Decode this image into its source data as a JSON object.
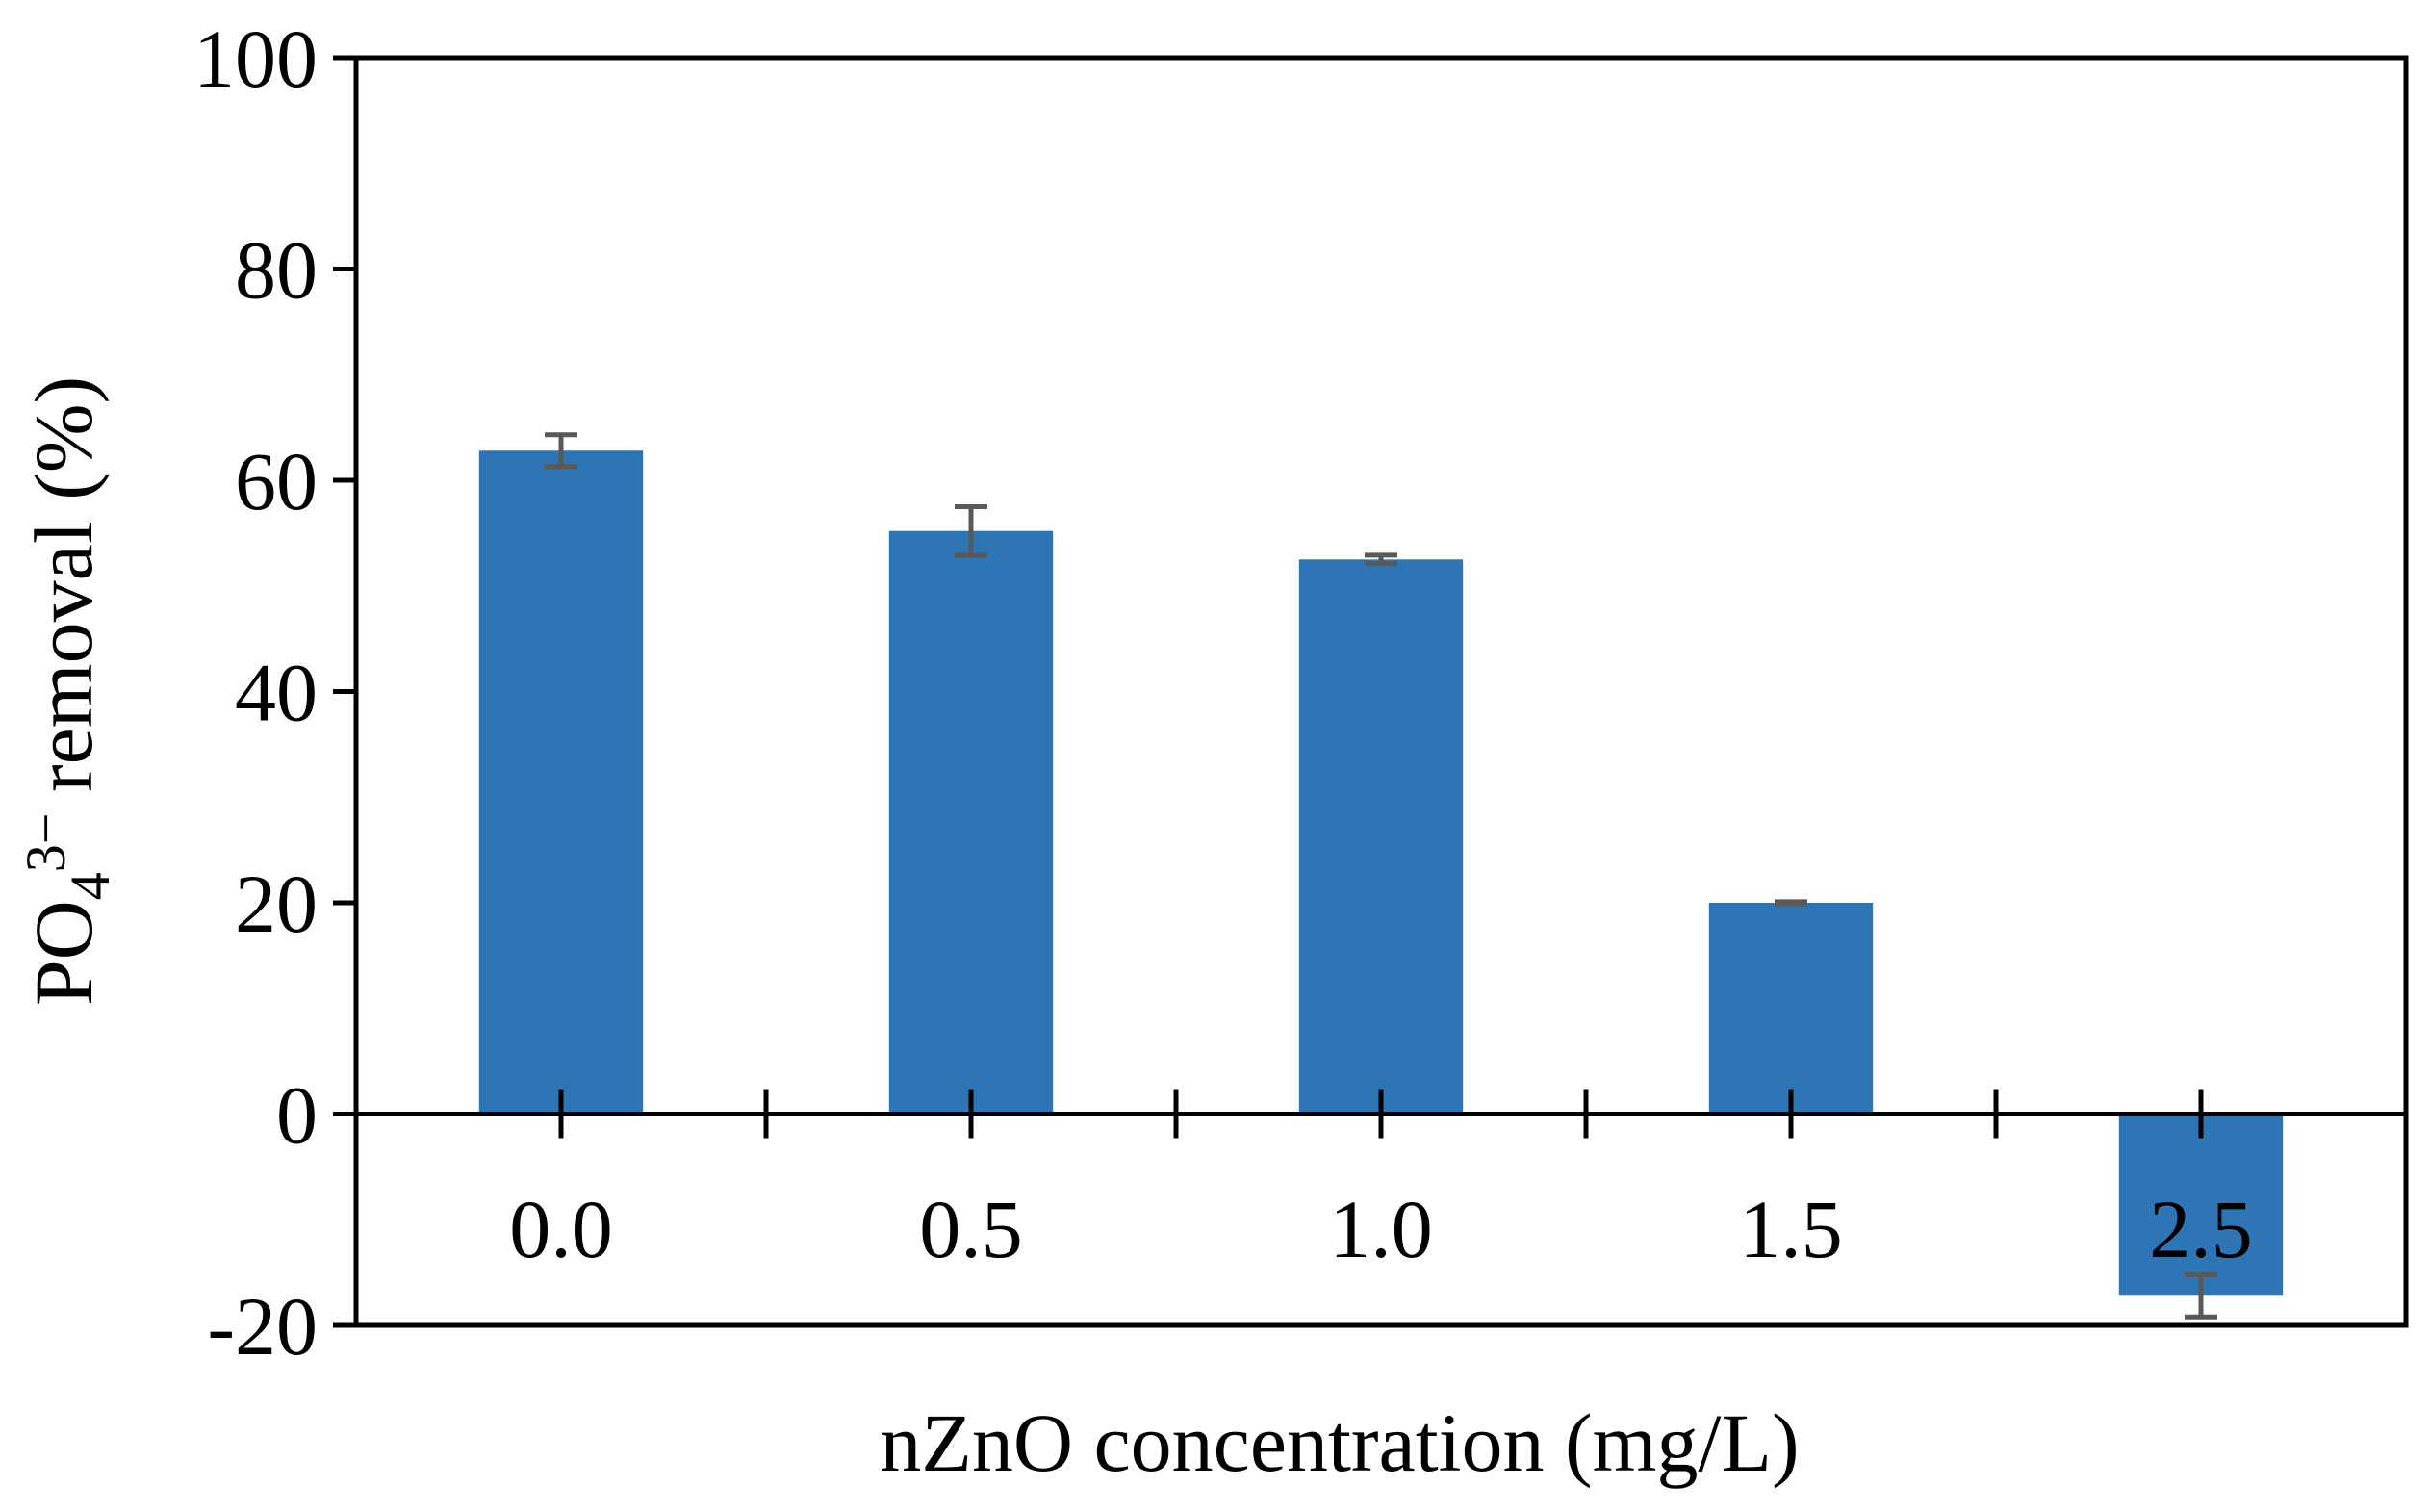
{
  "chart_data": {
    "type": "bar",
    "title": "",
    "xlabel": "nZnO concentration (mg/L)",
    "ylabel": {
      "prefix": "PO",
      "sub": "4",
      "sup": "3−",
      "suffix": " removal (%)"
    },
    "categories": [
      "0.0",
      "0.5",
      "1.0",
      "1.5",
      "2.5"
    ],
    "values": [
      62.8,
      55.2,
      52.5,
      20.0,
      -17.2
    ],
    "errors": [
      1.5,
      2.3,
      0.4,
      0.1,
      2.0
    ],
    "ylim": [
      -20,
      100
    ],
    "yticks": [
      -20,
      0,
      20,
      40,
      60,
      80,
      100
    ],
    "ytick_labels": [
      "-20",
      "0",
      "20",
      "40",
      "60",
      "80",
      "100"
    ],
    "grid": false,
    "legend": "none",
    "colors": {
      "bar": "#2E75B6",
      "error_bar": "#595959",
      "axis": "#000000"
    }
  }
}
